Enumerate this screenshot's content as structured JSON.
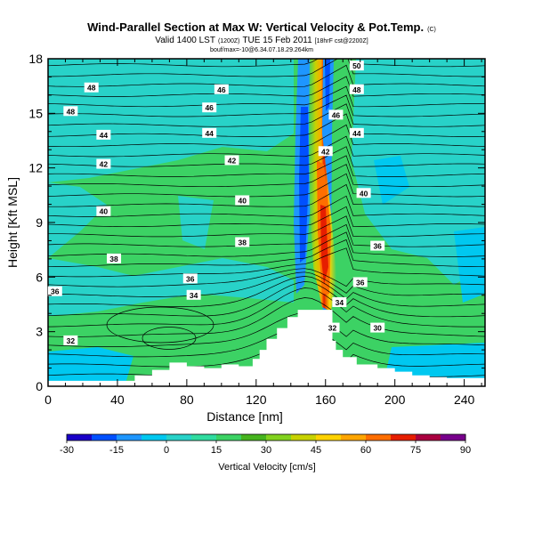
{
  "title": "Wind-Parallel Section at Max W: Vertical Velocity & Pot.Temp.",
  "title_mark": "(C)",
  "subtitle_prefix": "Valid 1400 LST",
  "subtitle_small1": "(1200Z)",
  "subtitle_mid": "TUE 15 Feb 2011",
  "subtitle_small2": "[18hrF cst@2200Z]",
  "subtitle_line3": "bouf/max=-10@6.34.07.18.29.264km",
  "chart_data": {
    "type": "heatmap",
    "xlabel": "Distance [nm]",
    "ylabel": "Height [Kft MSL]",
    "xlim": [
      0,
      252
    ],
    "ylim": [
      0,
      18
    ],
    "xticks": [
      "0",
      "40",
      "80",
      "120",
      "160",
      "200",
      "240"
    ],
    "yticks": [
      "0",
      "3",
      "6",
      "9",
      "12",
      "15",
      "18"
    ],
    "colorbar": {
      "label": "Vertical Velocity [cm/s]",
      "ticks": [
        "-30",
        "-15",
        "0",
        "15",
        "30",
        "45",
        "60",
        "75",
        "90"
      ],
      "range": [
        -30,
        90
      ],
      "colors": [
        "#1a00c8",
        "#0050ff",
        "#1e96ff",
        "#00c8f0",
        "#28d2c8",
        "#30dca0",
        "#3cd264",
        "#46b41e",
        "#82d21e",
        "#c8d200",
        "#ffd200",
        "#ffa500",
        "#ff6e00",
        "#e61e00",
        "#aa0040",
        "#78008c"
      ]
    },
    "terrain_profile": [
      [
        0,
        0.3
      ],
      [
        45,
        0.3
      ],
      [
        50,
        0.6
      ],
      [
        60,
        0.9
      ],
      [
        70,
        1.3
      ],
      [
        80,
        1.1
      ],
      [
        90,
        1.0
      ],
      [
        100,
        1.2
      ],
      [
        110,
        1.1
      ],
      [
        118,
        1.5
      ],
      [
        122,
        2.0
      ],
      [
        126,
        2.6
      ],
      [
        132,
        3.2
      ],
      [
        138,
        3.8
      ],
      [
        144,
        4.2
      ],
      [
        160,
        4.2
      ],
      [
        164,
        2.5
      ],
      [
        166,
        2.0
      ],
      [
        170,
        1.6
      ],
      [
        178,
        1.2
      ],
      [
        190,
        1.0
      ],
      [
        200,
        0.8
      ],
      [
        210,
        0.6
      ],
      [
        220,
        0.5
      ],
      [
        230,
        0.45
      ],
      [
        252,
        0.4
      ]
    ],
    "theta_contours": [
      {
        "label": "48",
        "level": 48,
        "x": 25,
        "y": 16.4
      },
      {
        "label": "48",
        "level": 48,
        "x": 13,
        "y": 15.1
      },
      {
        "label": "46",
        "level": 46,
        "x": 100,
        "y": 16.3
      },
      {
        "label": "46",
        "level": 46,
        "x": 93,
        "y": 15.3
      },
      {
        "label": "44",
        "level": 44,
        "x": 32,
        "y": 13.8
      },
      {
        "label": "44",
        "level": 44,
        "x": 93,
        "y": 13.9
      },
      {
        "label": "42",
        "level": 42,
        "x": 32,
        "y": 12.2
      },
      {
        "label": "42",
        "level": 42,
        "x": 106,
        "y": 12.4
      },
      {
        "label": "40",
        "level": 40,
        "x": 32,
        "y": 9.6
      },
      {
        "label": "40",
        "level": 40,
        "x": 112,
        "y": 10.2
      },
      {
        "label": "38",
        "level": 38,
        "x": 112,
        "y": 7.9
      },
      {
        "label": "38",
        "level": 38,
        "x": 38,
        "y": 7.0
      },
      {
        "label": "36",
        "level": 36,
        "x": 4,
        "y": 5.2
      },
      {
        "label": "36",
        "level": 36,
        "x": 82,
        "y": 5.9
      },
      {
        "label": "34",
        "level": 34,
        "x": 84,
        "y": 5.0
      },
      {
        "label": "32",
        "level": 32,
        "x": 13,
        "y": 2.5
      },
      {
        "label": "50",
        "level": 50,
        "x": 178,
        "y": 17.6
      },
      {
        "label": "48",
        "level": 48,
        "x": 178,
        "y": 16.3
      },
      {
        "label": "46",
        "level": 46,
        "x": 166,
        "y": 14.9
      },
      {
        "label": "44",
        "level": 44,
        "x": 178,
        "y": 13.9
      },
      {
        "label": "42",
        "level": 42,
        "x": 160,
        "y": 12.9
      },
      {
        "label": "40",
        "level": 40,
        "x": 182,
        "y": 10.6
      },
      {
        "label": "36",
        "level": 36,
        "x": 190,
        "y": 7.7
      },
      {
        "label": "36",
        "level": 36,
        "x": 180,
        "y": 5.7
      },
      {
        "label": "34",
        "level": 34,
        "x": 168,
        "y": 4.6
      },
      {
        "label": "32",
        "level": 32,
        "x": 164,
        "y": 3.2
      },
      {
        "label": "30",
        "level": 30,
        "x": 190,
        "y": 3.2
      }
    ]
  }
}
